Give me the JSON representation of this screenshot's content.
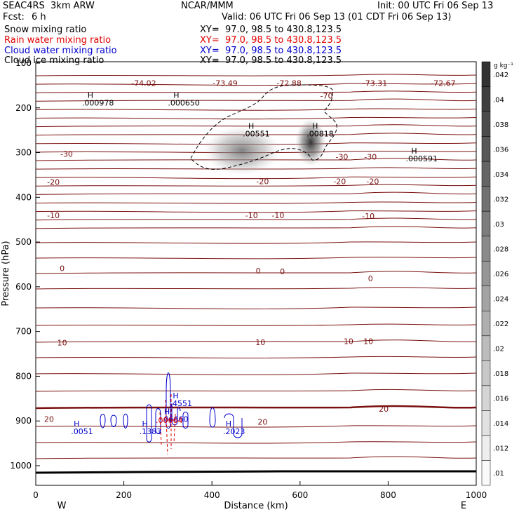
{
  "header": {
    "model": "SEAC4RS  3km ARW",
    "org": "NCAR/MMM",
    "init": "Init: 00 UTC Fri 06 Sep 13",
    "fcst_label": "Fcst:",
    "fcst_value": "6 h",
    "valid": "Valid: 06 UTC Fri 06 Sep 13 (01 CDT Fri 06 Sep 13)"
  },
  "legend": [
    {
      "name": "Snow mixing ratio",
      "xy": "XY=  97.0, 98.5 to 430.8,123.5",
      "color": "#000000"
    },
    {
      "name": "Rain water mixing ratio",
      "xy": "XY=  97.0, 98.5 to 430.8,123.5",
      "color": "#e00000"
    },
    {
      "name": "Cloud water mixing ratio",
      "xy": "XY=  97.0, 98.5 to 430.8,123.5",
      "color": "#0000cc"
    },
    {
      "name": "Cloud ice mixing ratio",
      "xy": "XY=  97.0, 98.5 to 430.8,123.5",
      "color": "#000000"
    }
  ],
  "chart_data": {
    "type": "cross-section",
    "xlabel": "Distance (km)",
    "ylabel": "Pressure (hPa)",
    "xlim": [
      0,
      1000
    ],
    "ylim": [
      100,
      1050
    ],
    "x_ticks": [
      "0",
      "200",
      "400",
      "600",
      "800",
      "1000"
    ],
    "y_ticks": [
      "100",
      "200",
      "300",
      "400",
      "500",
      "600",
      "700",
      "800",
      "900",
      "1000"
    ],
    "x_end_labels": {
      "left": "W",
      "right": "E"
    },
    "colorbar": {
      "unit": "g kg⁻¹",
      "ticks": [
        ".042",
        ".04",
        ".038",
        ".036",
        ".034",
        ".032",
        ".03",
        ".028",
        ".026",
        ".024",
        ".022",
        ".02",
        ".018",
        ".016",
        ".014",
        ".012",
        ".01"
      ]
    },
    "temperature_labels": [
      {
        "x": 245,
        "p": 145,
        "text": "-74.02"
      },
      {
        "x": 430,
        "p": 145,
        "text": "-73.49"
      },
      {
        "x": 575,
        "p": 145,
        "text": "-72.88"
      },
      {
        "x": 770,
        "p": 145,
        "text": "-73.31"
      },
      {
        "x": 925,
        "p": 145,
        "text": "-72.67"
      },
      {
        "x": 660,
        "p": 173,
        "text": "-70"
      },
      {
        "x": 70,
        "p": 303,
        "text": "-30"
      },
      {
        "x": 695,
        "p": 309,
        "text": "-30"
      },
      {
        "x": 760,
        "p": 309,
        "text": "-30"
      },
      {
        "x": 40,
        "p": 366,
        "text": "-20"
      },
      {
        "x": 515,
        "p": 364,
        "text": "-20"
      },
      {
        "x": 690,
        "p": 364,
        "text": "-20"
      },
      {
        "x": 765,
        "p": 364,
        "text": "-20"
      },
      {
        "x": 40,
        "p": 440,
        "text": "-10"
      },
      {
        "x": 490,
        "p": 440,
        "text": "-10"
      },
      {
        "x": 550,
        "p": 440,
        "text": "-10"
      },
      {
        "x": 755,
        "p": 442,
        "text": "-10"
      },
      {
        "x": 60,
        "p": 559,
        "text": "0"
      },
      {
        "x": 505,
        "p": 564,
        "text": "0"
      },
      {
        "x": 560,
        "p": 566,
        "text": "0"
      },
      {
        "x": 760,
        "p": 581,
        "text": "0"
      },
      {
        "x": 60,
        "p": 725,
        "text": "10"
      },
      {
        "x": 510,
        "p": 724,
        "text": "10"
      },
      {
        "x": 710,
        "p": 722,
        "text": "10"
      },
      {
        "x": 755,
        "p": 722,
        "text": "10"
      },
      {
        "x": 30,
        "p": 896,
        "text": "20"
      },
      {
        "x": 515,
        "p": 902,
        "text": "20"
      },
      {
        "x": 790,
        "p": 873,
        "text": "20"
      }
    ],
    "snow_maxima": [
      {
        "x": 105,
        "p": 190,
        "text": ".000978"
      },
      {
        "x": 300,
        "p": 190,
        "text": ".000650"
      },
      {
        "x": 470,
        "p": 259,
        "text": ".00551"
      },
      {
        "x": 615,
        "p": 259,
        "text": ".00818"
      },
      {
        "x": 840,
        "p": 315,
        "text": ".000591"
      }
    ],
    "cloud_water_maxima": [
      {
        "x": 80,
        "p": 925,
        "text": ".0051"
      },
      {
        "x": 235,
        "p": 925,
        "text": ".1383"
      },
      {
        "x": 305,
        "p": 862,
        "text": ".4551"
      },
      {
        "x": 285,
        "p": 897,
        "text": ".06660"
      },
      {
        "x": 425,
        "p": 925,
        "text": ".2023"
      }
    ],
    "rain_label": {
      "x": 285,
      "p": 900,
      "text": ".00664"
    }
  }
}
